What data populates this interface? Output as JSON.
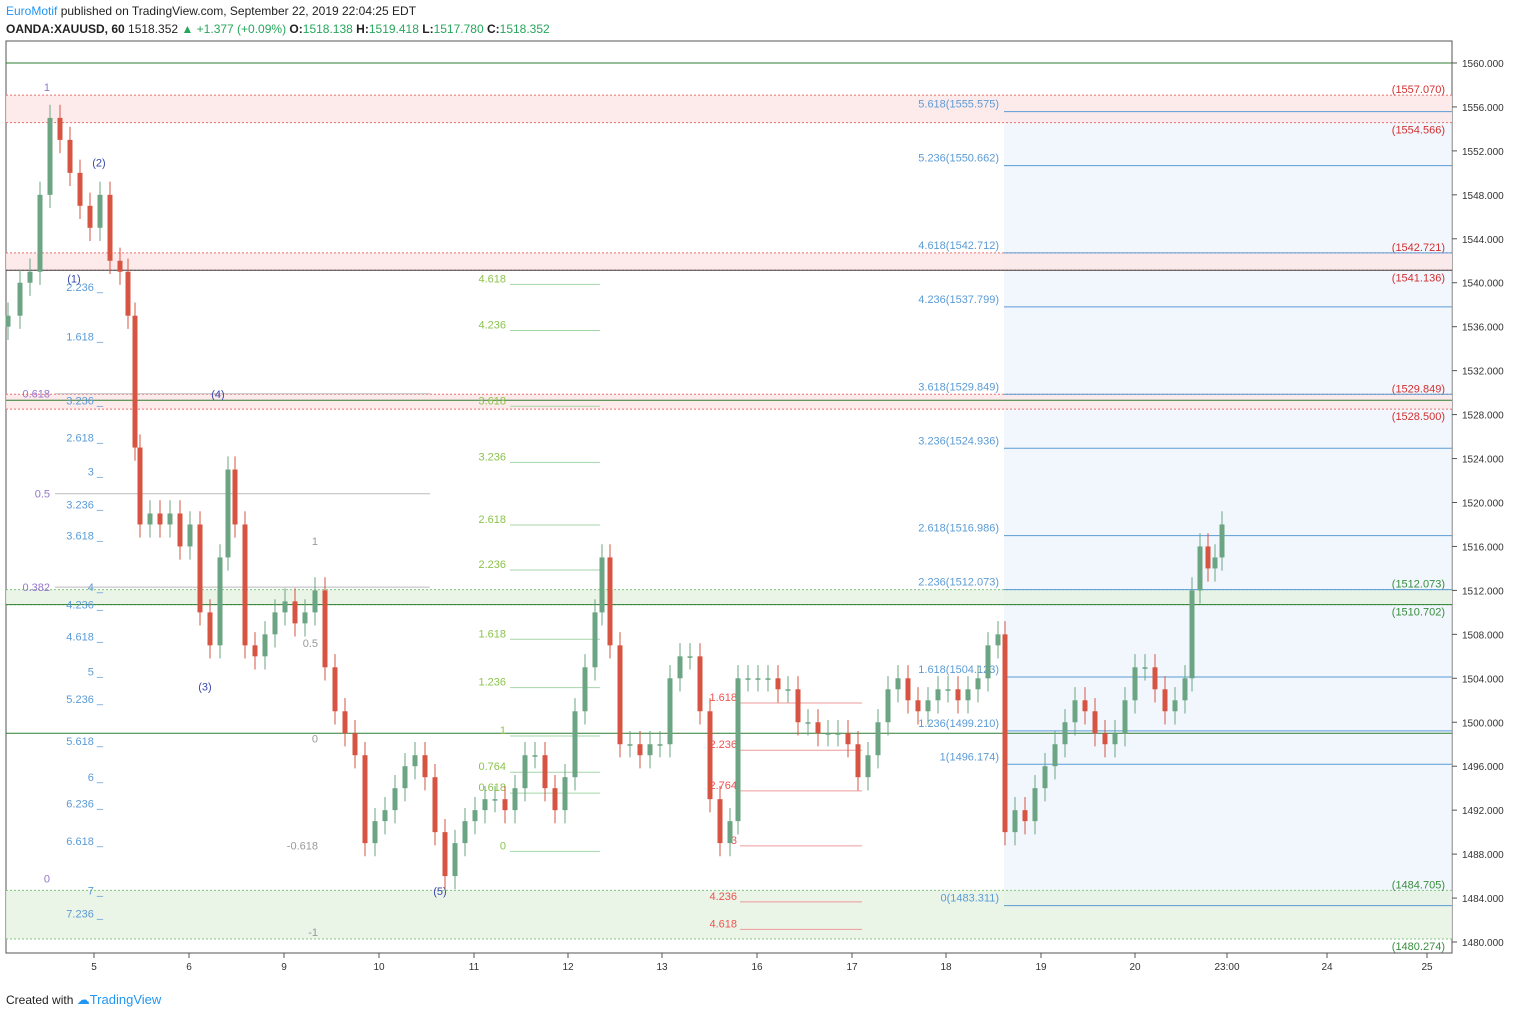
{
  "header": {
    "author": "EuroMotif",
    "published_text": "published on TradingView.com, September 22, 2019 22:04:25 EDT",
    "symbol": "OANDA:XAUUSD, 60",
    "last": "1518.352",
    "change": "+1.377 (+0.09%)",
    "o_label": "O:",
    "o": "1518.138",
    "h_label": "H:",
    "h": "1519.418",
    "l_label": "L:",
    "l": "1517.780",
    "c_label": "C:",
    "c": "1518.352"
  },
  "footer": {
    "created_with": "Created with",
    "brand": "TradingView"
  },
  "colors": {
    "up": "#6ba583",
    "down": "#d75442",
    "resistance": "#d32f2f",
    "support": "#388e3c",
    "fib_blue": "#5b9bd5",
    "fib_green": "#8bc34a",
    "fib_gray": "#b0bec5",
    "fib_purple": "#9575cd",
    "fib_red": "#ef5350"
  },
  "chart_data": {
    "type": "candlestick",
    "ylim": [
      1479,
      1562
    ],
    "y_ticks": [
      "1480.000",
      "1484.000",
      "1488.000",
      "1492.000",
      "1496.000",
      "1500.000",
      "1504.000",
      "1508.000",
      "1512.000",
      "1516.000",
      "1520.000",
      "1524.000",
      "1528.000",
      "1532.000",
      "1536.000",
      "1540.000",
      "1544.000",
      "1548.000",
      "1552.000",
      "1556.000",
      "1560.000"
    ],
    "x_ticks": [
      "5",
      "6",
      "9",
      "10",
      "11",
      "12",
      "13",
      "16",
      "17",
      "18",
      "19",
      "20",
      "23:00",
      "24",
      "25"
    ],
    "zones": [
      {
        "kind": "resistance",
        "low": 1554.566,
        "high": 1557.07,
        "labels": [
          "(1557.070)",
          "(1554.566)"
        ]
      },
      {
        "kind": "resistance",
        "low": 1541.136,
        "high": 1542.721,
        "labels": [
          "(1542.721)",
          "(1541.136)"
        ]
      },
      {
        "kind": "resistance",
        "low": 1528.5,
        "high": 1529.849,
        "labels": [
          "(1529.849)",
          "(1528.500)"
        ]
      },
      {
        "kind": "support",
        "low": 1510.702,
        "high": 1512.073,
        "labels": [
          "(1512.073)",
          "(1510.702)"
        ]
      },
      {
        "kind": "support",
        "low": 1480.274,
        "high": 1484.705,
        "labels": [
          "(1484.705)",
          "(1480.274)"
        ]
      }
    ],
    "horizontal_lines": [
      1560.0,
      1541.136,
      1529.3,
      1510.702,
      1499.0
    ],
    "projection_fib": {
      "levels": [
        {
          "label": "0(1483.311)",
          "price": 1483.311
        },
        {
          "label": "1(1496.174)",
          "price": 1496.174
        },
        {
          "label": "1.236(1499.210)",
          "price": 1499.21
        },
        {
          "label": "1.618(1504.123)",
          "price": 1504.123
        },
        {
          "label": "2.236(1512.073)",
          "price": 1512.073
        },
        {
          "label": "2.618(1516.986)",
          "price": 1516.986
        },
        {
          "label": "3.236(1524.936)",
          "price": 1524.936
        },
        {
          "label": "3.618(1529.849)",
          "price": 1529.849
        },
        {
          "label": "4.236(1537.799)",
          "price": 1537.799
        },
        {
          "label": "4.618(1542.712)",
          "price": 1542.712
        },
        {
          "label": "5.236(1550.662)",
          "price": 1550.662
        },
        {
          "label": "5.618(1555.575)",
          "price": 1555.575
        }
      ]
    },
    "left_fib_labels": [
      {
        "label": "1",
        "price": 1557.8
      },
      {
        "label": "0.618",
        "price": 1529.9
      },
      {
        "label": "0.5",
        "price": 1520.8
      },
      {
        "label": "0.382",
        "price": 1512.3
      },
      {
        "label": "0",
        "price": 1485.8
      }
    ],
    "ext_fib_labels": [
      {
        "label": "2.236",
        "price": 1539.6
      },
      {
        "label": "1.618",
        "price": 1535.1
      },
      {
        "label": "3.236",
        "price": 1529.3
      },
      {
        "label": "2.618",
        "price": 1525.9
      },
      {
        "label": "3",
        "price": 1522.8
      },
      {
        "label": "3.236",
        "price": 1519.8
      },
      {
        "label": "3.618",
        "price": 1517.0
      },
      {
        "label": "4",
        "price": 1512.3
      },
      {
        "label": "4.236",
        "price": 1510.7
      },
      {
        "label": "4.618",
        "price": 1507.8
      },
      {
        "label": "5",
        "price": 1504.6
      },
      {
        "label": "5.236",
        "price": 1502.1
      },
      {
        "label": "5.618",
        "price": 1498.3
      },
      {
        "label": "6",
        "price": 1495.0
      },
      {
        "label": "6.236",
        "price": 1492.6
      },
      {
        "label": "6.618",
        "price": 1489.2
      },
      {
        "label": "7",
        "price": 1484.7
      },
      {
        "label": "7.236",
        "price": 1482.6
      }
    ],
    "small_fib_labels": [
      {
        "label": "1",
        "price": 1516.5
      },
      {
        "label": "0.5",
        "price": 1507.2
      },
      {
        "label": "0",
        "price": 1498.5
      },
      {
        "label": "-0.618",
        "price": 1488.8
      },
      {
        "label": "-1",
        "price": 1480.9
      }
    ],
    "green_fib_labels": [
      {
        "label": "4.618",
        "price": 1540.4
      },
      {
        "label": "4.236",
        "price": 1536.2
      },
      {
        "label": "3.618",
        "price": 1529.3
      },
      {
        "label": "3.236",
        "price": 1524.2
      },
      {
        "label": "2.618",
        "price": 1518.5
      },
      {
        "label": "2.236",
        "price": 1514.4
      },
      {
        "label": "1.618",
        "price": 1508.1
      },
      {
        "label": "1.236",
        "price": 1503.7
      },
      {
        "label": "1",
        "price": 1499.3
      },
      {
        "label": "0.764",
        "price": 1496.0
      },
      {
        "label": "0.618",
        "price": 1494.1
      },
      {
        "label": "0",
        "price": 1488.8
      }
    ],
    "red_fib_labels": [
      {
        "label": "1.618",
        "price": 1502.3
      },
      {
        "label": "2.236",
        "price": 1498.0
      },
      {
        "label": "2.764",
        "price": 1494.3
      },
      {
        "label": "3",
        "price": 1489.3
      },
      {
        "label": "4.236",
        "price": 1484.2
      },
      {
        "label": "4.618",
        "price": 1481.7
      }
    ],
    "wave_labels": [
      {
        "label": "(2)",
        "price": 1550.6
      },
      {
        "label": "(1)",
        "price": 1540.0
      },
      {
        "label": "(4)",
        "price": 1529.5
      },
      {
        "label": "(3)",
        "price": 1502.9
      },
      {
        "label": "(5)",
        "price": 1484.3
      }
    ],
    "candles": []
  }
}
